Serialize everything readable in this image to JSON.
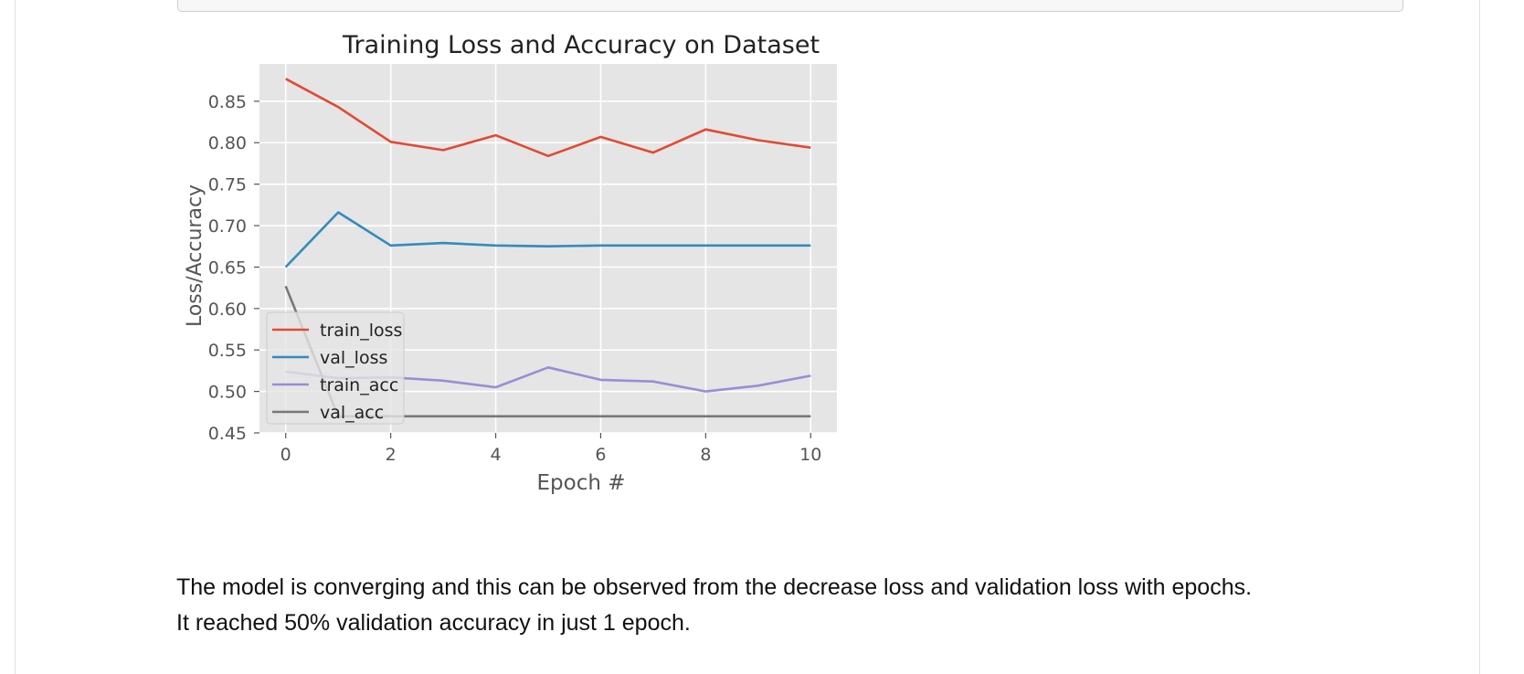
{
  "chart_data": {
    "type": "line",
    "title": "Training Loss and Accuracy on Dataset",
    "xlabel": "Epoch #",
    "ylabel": "Loss/Accuracy",
    "xlim": [
      -0.5,
      10.5
    ],
    "ylim": [
      0.45,
      0.895
    ],
    "xticks": [
      0,
      2,
      4,
      6,
      8,
      10
    ],
    "yticks": [
      0.45,
      0.5,
      0.55,
      0.6,
      0.65,
      0.7,
      0.75,
      0.8,
      0.85
    ],
    "grid": true,
    "legend_position": "lower-left",
    "x": [
      0,
      1,
      2,
      3,
      4,
      5,
      6,
      7,
      8,
      9,
      10
    ],
    "series": [
      {
        "name": "train_loss",
        "color": "#e24a33",
        "values": [
          0.877,
          0.843,
          0.801,
          0.791,
          0.809,
          0.784,
          0.807,
          0.788,
          0.816,
          0.803,
          0.794
        ]
      },
      {
        "name": "val_loss",
        "color": "#348abd",
        "values": [
          0.65,
          0.716,
          0.676,
          0.679,
          0.676,
          0.675,
          0.676,
          0.676,
          0.676,
          0.676,
          0.676
        ]
      },
      {
        "name": "train_acc",
        "color": "#988ed5",
        "values": [
          0.524,
          0.516,
          0.517,
          0.513,
          0.505,
          0.529,
          0.514,
          0.512,
          0.5,
          0.507,
          0.519
        ]
      },
      {
        "name": "val_acc",
        "color": "#777777",
        "values": [
          0.627,
          0.47,
          0.47,
          0.47,
          0.47,
          0.47,
          0.47,
          0.47,
          0.47,
          0.47,
          0.47
        ]
      }
    ]
  },
  "caption": {
    "line1": "The model is converging and this can be observed from the decrease loss and validation loss with epochs.",
    "line2": "It reached 50% validation accuracy in just 1 epoch."
  }
}
